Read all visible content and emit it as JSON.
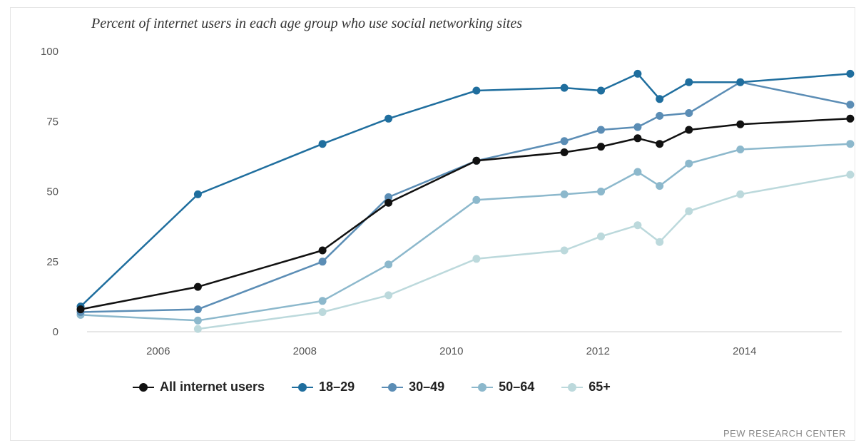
{
  "chart_data": {
    "type": "line",
    "title": "Percent of internet users in each age group who use social networking sites",
    "xlabel": "",
    "ylabel": "",
    "xlim": [
      2005.0,
      2015.6
    ],
    "ylim": [
      0,
      100
    ],
    "x_ticks": [
      2006,
      2008,
      2010,
      2012,
      2014
    ],
    "y_ticks": [
      0,
      25,
      50,
      75,
      100
    ],
    "grid": false,
    "legend_position": "bottom",
    "source": "PEW RESEARCH CENTER",
    "series": [
      {
        "name": "All internet users",
        "color": "#111111",
        "points": [
          [
            2005.0,
            8
          ],
          [
            2006.6,
            16
          ],
          [
            2008.3,
            29
          ],
          [
            2009.2,
            46
          ],
          [
            2010.4,
            61
          ],
          [
            2011.6,
            64
          ],
          [
            2012.1,
            66
          ],
          [
            2012.6,
            69
          ],
          [
            2012.9,
            67
          ],
          [
            2013.3,
            72
          ],
          [
            2014.0,
            74
          ],
          [
            2015.5,
            76
          ]
        ]
      },
      {
        "name": "18–29",
        "color": "#1f6e9e",
        "points": [
          [
            2005.0,
            9
          ],
          [
            2006.6,
            49
          ],
          [
            2008.3,
            67
          ],
          [
            2009.2,
            76
          ],
          [
            2010.4,
            86
          ],
          [
            2011.6,
            87
          ],
          [
            2012.1,
            86
          ],
          [
            2012.6,
            92
          ],
          [
            2012.9,
            83
          ],
          [
            2013.3,
            89
          ],
          [
            2014.0,
            89
          ],
          [
            2015.5,
            92
          ]
        ]
      },
      {
        "name": "30–49",
        "color": "#5b8db5",
        "points": [
          [
            2005.0,
            7
          ],
          [
            2006.6,
            8
          ],
          [
            2008.3,
            25
          ],
          [
            2009.2,
            48
          ],
          [
            2010.4,
            61
          ],
          [
            2011.6,
            68
          ],
          [
            2012.1,
            72
          ],
          [
            2012.6,
            73
          ],
          [
            2012.9,
            77
          ],
          [
            2013.3,
            78
          ],
          [
            2014.0,
            89
          ],
          [
            2015.5,
            81
          ]
        ]
      },
      {
        "name": "50–64",
        "color": "#8cb8cc",
        "points": [
          [
            2005.0,
            6
          ],
          [
            2006.6,
            4
          ],
          [
            2008.3,
            11
          ],
          [
            2009.2,
            24
          ],
          [
            2010.4,
            47
          ],
          [
            2011.6,
            49
          ],
          [
            2012.1,
            50
          ],
          [
            2012.6,
            57
          ],
          [
            2012.9,
            52
          ],
          [
            2013.3,
            60
          ],
          [
            2014.0,
            65
          ],
          [
            2015.5,
            67
          ]
        ]
      },
      {
        "name": "65+",
        "color": "#bcd9dc",
        "points": [
          [
            2006.6,
            1
          ],
          [
            2008.3,
            7
          ],
          [
            2009.2,
            13
          ],
          [
            2010.4,
            26
          ],
          [
            2011.6,
            29
          ],
          [
            2012.1,
            34
          ],
          [
            2012.6,
            38
          ],
          [
            2012.9,
            32
          ],
          [
            2013.3,
            43
          ],
          [
            2014.0,
            49
          ],
          [
            2015.5,
            56
          ]
        ]
      }
    ]
  }
}
